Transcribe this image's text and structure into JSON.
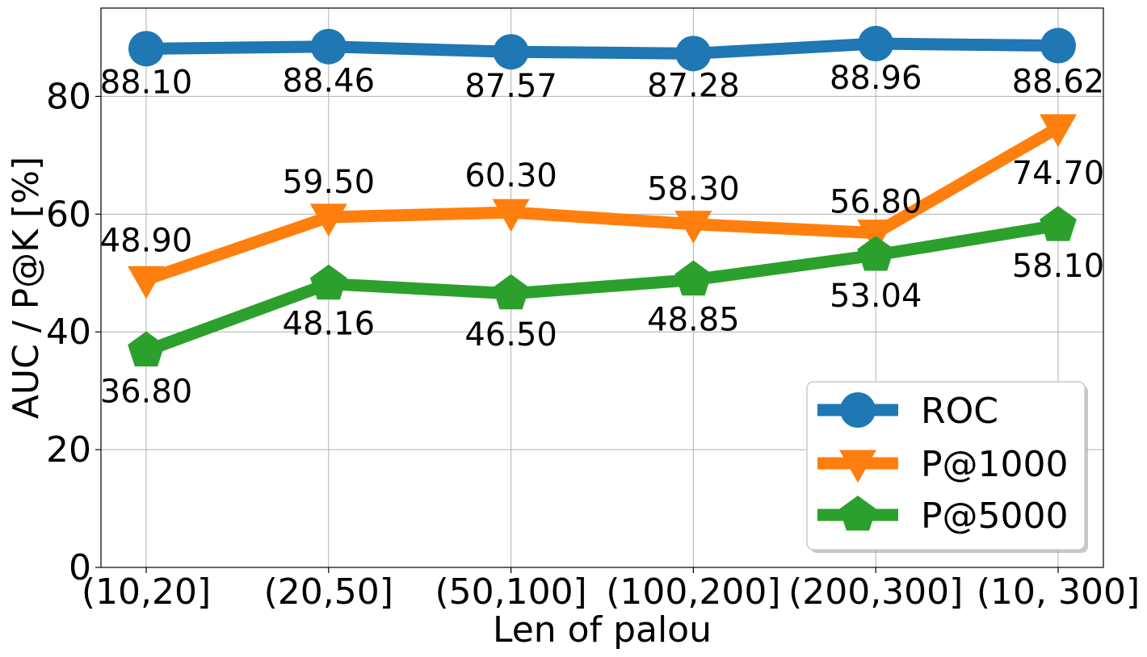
{
  "chart_data": {
    "type": "line",
    "title": "",
    "xlabel": "Len of palou",
    "ylabel": "AUC / P@K [%]",
    "categories": [
      "(10,20]",
      "(20,50]",
      "(50,100]",
      "(100,200]",
      "(200,300]",
      "(10, 300]"
    ],
    "ylim": [
      0,
      95
    ],
    "yticks": [
      0,
      20,
      40,
      60,
      80
    ],
    "grid": true,
    "legend_position": "lower-right",
    "series": [
      {
        "name": "ROC",
        "color": "#1f77b4",
        "marker": "circle",
        "values": [
          88.1,
          88.46,
          87.57,
          87.28,
          88.96,
          88.62
        ],
        "labels": [
          "88.10",
          "88.46",
          "87.57",
          "87.28",
          "88.96",
          "88.62"
        ]
      },
      {
        "name": "P@1000",
        "color": "#ff7f0e",
        "marker": "triangle-down",
        "values": [
          48.9,
          59.5,
          60.3,
          58.3,
          56.8,
          74.7
        ],
        "labels": [
          "48.90",
          "59.50",
          "60.30",
          "58.30",
          "56.80",
          "74.70"
        ]
      },
      {
        "name": "P@5000",
        "color": "#2ca02c",
        "marker": "pentagon",
        "values": [
          36.8,
          48.16,
          46.5,
          48.85,
          53.04,
          58.1
        ],
        "labels": [
          "36.80",
          "48.16",
          "46.50",
          "48.85",
          "53.04",
          "58.10"
        ]
      }
    ]
  }
}
